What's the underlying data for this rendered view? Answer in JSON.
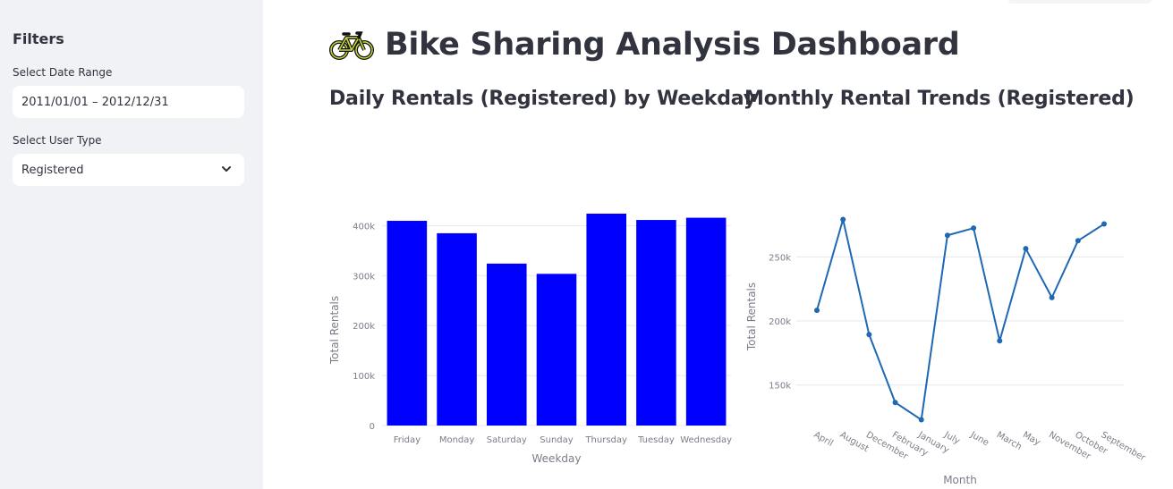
{
  "sidebar": {
    "title": "Filters",
    "date_range_label": "Select Date Range",
    "date_range_value": "2011/01/01 – 2012/12/31",
    "user_type_label": "Select User Type",
    "user_type_value": "Registered"
  },
  "main": {
    "title": "Bike Sharing Analysis Dashboard",
    "title_icon": "bicycle-icon"
  },
  "chart_data": [
    {
      "type": "bar",
      "title": "Daily Rentals (Registered) by Weekday",
      "xlabel": "Weekday",
      "ylabel": "Total Rentals",
      "categories": [
        "Friday",
        "Monday",
        "Saturday",
        "Sunday",
        "Thursday",
        "Tuesday",
        "Wednesday"
      ],
      "values": [
        409552,
        384719,
        323955,
        303506,
        423935,
        411266,
        415729
      ],
      "ylim": [
        0,
        440000
      ],
      "yticks": [
        0,
        100000,
        200000,
        300000,
        400000
      ],
      "ytick_labels": [
        "0",
        "100k",
        "200k",
        "300k",
        "400k"
      ],
      "color": "#0000ff",
      "grid": true
    },
    {
      "type": "line",
      "title": "Monthly Rental Trends (Registered)",
      "xlabel": "Month",
      "ylabel": "Total Rentals",
      "categories": [
        "April",
        "August",
        "December",
        "February",
        "January",
        "July",
        "June",
        "March",
        "May",
        "November",
        "October",
        "September"
      ],
      "values": [
        208292,
        279155,
        189343,
        136389,
        122891,
        266791,
        272436,
        184476,
        256401,
        218228,
        262592,
        275668
      ],
      "ylim": [
        117000,
        290000
      ],
      "yticks": [
        150000,
        200000,
        250000
      ],
      "ytick_labels": [
        "150k",
        "200k",
        "250k"
      ],
      "color": "#1f68b4",
      "grid": true
    }
  ]
}
